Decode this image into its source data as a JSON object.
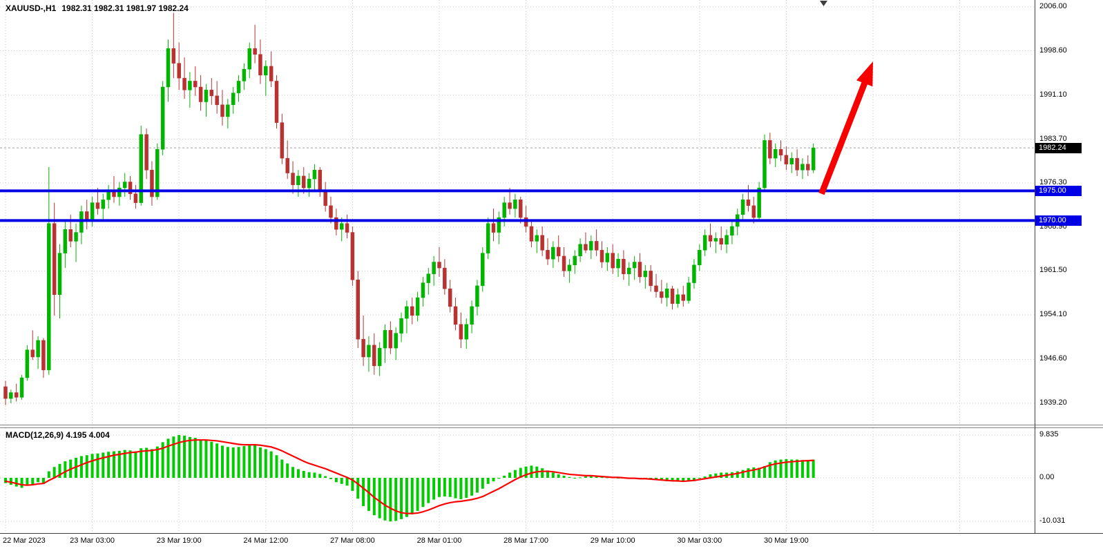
{
  "header": {
    "symbol_period": "XAUUSD-,H1",
    "ohlc": "1982.31 1982.31 1981.97 1982.24"
  },
  "badges": {
    "current": "1982.24",
    "resistance": "1975.00",
    "support": "1970.00"
  },
  "colors": {
    "bull": "#00B400",
    "bear": "#B83232",
    "macd_hist": "#00CC00",
    "macd_signal": "#FF0000",
    "hline": "#0000E6",
    "grid": "#C9C9C9",
    "current_price_line": "#9AA0A6",
    "arrow": "#F70000",
    "badge_current_bg": "#000000",
    "badge_line_bg": "#0000E6",
    "axis_text": "#000000"
  },
  "chart_data": {
    "type": "candlestick",
    "title": "XAUUSD-,H1",
    "symbol": "XAUUSD-",
    "timeframe": "H1",
    "last_bar": {
      "open": 1982.31,
      "high": 1982.31,
      "low": 1981.97,
      "close": 1982.24
    },
    "current_price": 1982.24,
    "y_axis": {
      "labels": [
        "2006.00",
        "1998.60",
        "1991.10",
        "1983.70",
        "1976.30",
        "1968.90",
        "1961.50",
        "1954.10",
        "1946.60",
        "1939.20"
      ],
      "values": [
        2006.0,
        1998.6,
        1991.1,
        1983.7,
        1976.3,
        1968.9,
        1961.5,
        1954.1,
        1946.6,
        1939.2
      ]
    },
    "x_axis": {
      "labels": [
        {
          "index": 0,
          "label": "22 Mar 2023"
        },
        {
          "index": 16,
          "label": "23 Mar 03:00"
        },
        {
          "index": 32,
          "label": "23 Mar 19:00"
        },
        {
          "index": 48,
          "label": "24 Mar 12:00"
        },
        {
          "index": 64,
          "label": "27 Mar 08:00"
        },
        {
          "index": 80,
          "label": "28 Mar 01:00"
        },
        {
          "index": 96,
          "label": "28 Mar 17:00"
        },
        {
          "index": 112,
          "label": "29 Mar 10:00"
        },
        {
          "index": 128,
          "label": "30 Mar 03:00"
        },
        {
          "index": 144,
          "label": "30 Mar 19:00"
        }
      ]
    },
    "grid_indices": [
      0,
      16,
      32,
      48,
      64,
      80,
      96,
      112,
      128,
      144,
      160,
      176
    ],
    "horizontal_lines": [
      {
        "price": 1975.0,
        "label": "1975.00",
        "color": "#0000E6"
      },
      {
        "price": 1970.0,
        "label": "1970.00",
        "color": "#0000E6"
      }
    ],
    "annotations": [
      {
        "type": "arrow",
        "from_index": 150.5,
        "from_price": 1974.5,
        "to_index": 160,
        "to_price": 1996.8,
        "color": "#F70000"
      }
    ],
    "candles": [
      [
        1942.0,
        1943.0,
        1938.9,
        1940.0
      ],
      [
        1940.0,
        1941.5,
        1939.2,
        1941.0
      ],
      [
        1941.0,
        1942.5,
        1939.5,
        1940.2
      ],
      [
        1940.2,
        1944.0,
        1939.8,
        1943.5
      ],
      [
        1943.5,
        1949.0,
        1943.0,
        1948.2
      ],
      [
        1948.2,
        1951.5,
        1946.5,
        1947.0
      ],
      [
        1947.0,
        1950.5,
        1945.0,
        1949.8
      ],
      [
        1949.8,
        1950.2,
        1943.5,
        1944.8
      ],
      [
        1944.8,
        1979.0,
        1944.0,
        1969.5
      ],
      [
        1969.5,
        1973.0,
        1954.0,
        1957.5
      ],
      [
        1957.5,
        1966.0,
        1953.5,
        1964.5
      ],
      [
        1964.5,
        1970.0,
        1962.0,
        1968.5
      ],
      [
        1968.5,
        1971.0,
        1965.5,
        1966.5
      ],
      [
        1966.5,
        1969.5,
        1963.0,
        1968.0
      ],
      [
        1968.0,
        1972.5,
        1966.0,
        1971.5
      ],
      [
        1971.5,
        1973.5,
        1968.5,
        1970.0
      ],
      [
        1970.0,
        1974.0,
        1969.0,
        1973.0
      ],
      [
        1973.0,
        1975.5,
        1971.0,
        1972.0
      ],
      [
        1972.0,
        1974.5,
        1970.0,
        1973.5
      ],
      [
        1973.5,
        1976.0,
        1972.0,
        1975.0
      ],
      [
        1975.0,
        1977.5,
        1973.0,
        1974.0
      ],
      [
        1974.0,
        1976.5,
        1972.5,
        1975.5
      ],
      [
        1975.5,
        1978.0,
        1974.0,
        1976.5
      ],
      [
        1976.5,
        1977.5,
        1973.5,
        1974.5
      ],
      [
        1974.5,
        1976.0,
        1972.0,
        1973.0
      ],
      [
        1973.0,
        1986.0,
        1972.5,
        1984.5
      ],
      [
        1984.5,
        1985.5,
        1977.0,
        1978.5
      ],
      [
        1978.5,
        1980.0,
        1972.5,
        1974.0
      ],
      [
        1974.0,
        1983.0,
        1973.5,
        1982.0
      ],
      [
        1982.0,
        1993.5,
        1981.0,
        1992.5
      ],
      [
        1992.5,
        2000.5,
        1990.0,
        1999.0
      ],
      [
        1999.0,
        2005.0,
        1994.0,
        1996.5
      ],
      [
        1996.5,
        2000.0,
        1992.0,
        1994.0
      ],
      [
        1994.0,
        1997.5,
        1990.5,
        1992.0
      ],
      [
        1992.0,
        1995.0,
        1989.0,
        1993.5
      ],
      [
        1993.5,
        1996.0,
        1991.0,
        1992.5
      ],
      [
        1992.5,
        1994.5,
        1988.5,
        1990.0
      ],
      [
        1990.0,
        1993.0,
        1987.5,
        1992.0
      ],
      [
        1992.0,
        1994.0,
        1989.5,
        1991.0
      ],
      [
        1991.0,
        1993.5,
        1988.0,
        1989.5
      ],
      [
        1989.5,
        1992.0,
        1986.0,
        1987.5
      ],
      [
        1987.5,
        1990.5,
        1985.5,
        1989.5
      ],
      [
        1989.5,
        1992.5,
        1988.0,
        1991.5
      ],
      [
        1991.5,
        1994.5,
        1990.0,
        1993.5
      ],
      [
        1993.5,
        1996.5,
        1992.0,
        1995.5
      ],
      [
        1995.5,
        2000.0,
        1994.0,
        1999.0
      ],
      [
        1999.0,
        2003.0,
        1996.5,
        1998.0
      ],
      [
        1998.0,
        2000.5,
        1993.0,
        1994.5
      ],
      [
        1994.5,
        1997.0,
        1991.0,
        1996.0
      ],
      [
        1996.0,
        1998.5,
        1992.5,
        1993.5
      ],
      [
        1993.5,
        1994.5,
        1985.5,
        1986.5
      ],
      [
        1986.5,
        1988.0,
        1979.5,
        1980.5
      ],
      [
        1980.5,
        1983.5,
        1977.0,
        1978.0
      ],
      [
        1978.0,
        1980.0,
        1974.5,
        1976.0
      ],
      [
        1976.0,
        1978.5,
        1974.0,
        1977.5
      ],
      [
        1977.5,
        1979.0,
        1974.5,
        1975.5
      ],
      [
        1975.5,
        1978.0,
        1974.0,
        1977.0
      ],
      [
        1977.0,
        1979.5,
        1975.0,
        1978.5
      ],
      [
        1978.5,
        1979.0,
        1974.0,
        1975.0
      ],
      [
        1975.0,
        1976.5,
        1971.5,
        1972.5
      ],
      [
        1972.5,
        1974.0,
        1969.5,
        1970.5
      ],
      [
        1970.5,
        1972.0,
        1967.5,
        1968.5
      ],
      [
        1968.5,
        1970.5,
        1966.5,
        1969.5
      ],
      [
        1969.5,
        1971.0,
        1967.0,
        1968.0
      ],
      [
        1968.0,
        1969.0,
        1959.0,
        1960.0
      ],
      [
        1960.0,
        1961.5,
        1948.5,
        1950.0
      ],
      [
        1950.0,
        1954.0,
        1945.5,
        1947.0
      ],
      [
        1947.0,
        1950.5,
        1944.5,
        1949.0
      ],
      [
        1949.0,
        1951.0,
        1944.0,
        1945.5
      ],
      [
        1945.5,
        1949.5,
        1943.8,
        1948.5
      ],
      [
        1948.5,
        1952.5,
        1946.0,
        1951.5
      ],
      [
        1951.5,
        1953.0,
        1947.5,
        1948.5
      ],
      [
        1948.5,
        1952.0,
        1946.5,
        1951.0
      ],
      [
        1951.0,
        1954.5,
        1949.5,
        1953.5
      ],
      [
        1953.5,
        1956.5,
        1951.0,
        1955.5
      ],
      [
        1955.5,
        1957.0,
        1952.5,
        1954.0
      ],
      [
        1954.0,
        1958.0,
        1953.0,
        1957.0
      ],
      [
        1957.0,
        1960.5,
        1955.5,
        1959.5
      ],
      [
        1959.5,
        1962.0,
        1957.5,
        1961.0
      ],
      [
        1961.0,
        1964.0,
        1959.0,
        1963.0
      ],
      [
        1963.0,
        1965.5,
        1960.5,
        1962.0
      ],
      [
        1962.0,
        1963.5,
        1957.5,
        1958.5
      ],
      [
        1958.5,
        1960.0,
        1954.5,
        1955.5
      ],
      [
        1955.5,
        1957.0,
        1951.5,
        1952.5
      ],
      [
        1952.5,
        1954.5,
        1948.5,
        1950.0
      ],
      [
        1950.0,
        1953.5,
        1948.4,
        1952.5
      ],
      [
        1952.5,
        1956.5,
        1951.0,
        1955.5
      ],
      [
        1955.5,
        1960.0,
        1954.0,
        1959.0
      ],
      [
        1959.0,
        1965.5,
        1958.0,
        1964.5
      ],
      [
        1964.5,
        1970.5,
        1963.5,
        1969.5
      ],
      [
        1969.5,
        1972.0,
        1966.5,
        1968.0
      ],
      [
        1968.0,
        1971.5,
        1966.0,
        1970.5
      ],
      [
        1970.5,
        1974.0,
        1969.0,
        1973.0
      ],
      [
        1973.0,
        1975.5,
        1971.0,
        1972.0
      ],
      [
        1972.0,
        1974.5,
        1970.5,
        1973.5
      ],
      [
        1973.5,
        1974.0,
        1969.5,
        1970.5
      ],
      [
        1970.5,
        1972.5,
        1968.0,
        1969.0
      ],
      [
        1969.0,
        1970.0,
        1965.5,
        1966.5
      ],
      [
        1966.5,
        1968.5,
        1964.5,
        1967.5
      ],
      [
        1967.5,
        1969.0,
        1964.0,
        1965.0
      ],
      [
        1965.0,
        1967.0,
        1962.5,
        1963.5
      ],
      [
        1963.5,
        1966.5,
        1962.0,
        1965.5
      ],
      [
        1965.5,
        1967.5,
        1963.0,
        1964.0
      ],
      [
        1964.0,
        1965.5,
        1960.5,
        1961.5
      ],
      [
        1961.5,
        1963.5,
        1959.5,
        1962.5
      ],
      [
        1962.5,
        1965.0,
        1961.0,
        1964.0
      ],
      [
        1964.0,
        1967.0,
        1963.0,
        1966.0
      ],
      [
        1966.0,
        1968.0,
        1964.5,
        1965.0
      ],
      [
        1965.0,
        1967.5,
        1963.5,
        1966.5
      ],
      [
        1966.5,
        1968.5,
        1964.0,
        1965.0
      ],
      [
        1965.0,
        1966.5,
        1962.0,
        1963.0
      ],
      [
        1963.0,
        1965.5,
        1961.5,
        1964.5
      ],
      [
        1964.5,
        1966.0,
        1961.0,
        1962.0
      ],
      [
        1962.0,
        1964.5,
        1960.5,
        1963.5
      ],
      [
        1963.5,
        1965.0,
        1960.0,
        1961.0
      ],
      [
        1961.0,
        1963.0,
        1959.0,
        1962.0
      ],
      [
        1962.0,
        1964.0,
        1960.0,
        1963.0
      ],
      [
        1963.0,
        1964.5,
        1959.5,
        1960.5
      ],
      [
        1960.5,
        1962.5,
        1958.5,
        1961.5
      ],
      [
        1961.5,
        1962.5,
        1958.0,
        1959.0
      ],
      [
        1959.0,
        1961.0,
        1957.0,
        1958.0
      ],
      [
        1958.0,
        1960.0,
        1956.0,
        1957.0
      ],
      [
        1957.0,
        1959.5,
        1955.5,
        1958.5
      ],
      [
        1958.5,
        1959.0,
        1955.0,
        1956.0
      ],
      [
        1956.0,
        1958.5,
        1955.3,
        1957.5
      ],
      [
        1957.5,
        1959.0,
        1955.5,
        1956.5
      ],
      [
        1956.5,
        1960.5,
        1956.0,
        1959.5
      ],
      [
        1959.5,
        1963.5,
        1958.5,
        1962.5
      ],
      [
        1962.5,
        1966.0,
        1961.5,
        1965.0
      ],
      [
        1965.0,
        1968.5,
        1964.0,
        1967.5
      ],
      [
        1967.5,
        1969.5,
        1965.5,
        1966.5
      ],
      [
        1966.5,
        1968.0,
        1964.5,
        1967.0
      ],
      [
        1967.0,
        1969.0,
        1965.0,
        1966.0
      ],
      [
        1966.0,
        1968.5,
        1964.5,
        1967.5
      ],
      [
        1967.5,
        1970.0,
        1966.0,
        1969.0
      ],
      [
        1969.0,
        1972.0,
        1967.5,
        1971.0
      ],
      [
        1971.0,
        1974.5,
        1970.0,
        1973.5
      ],
      [
        1973.5,
        1976.0,
        1971.5,
        1972.5
      ],
      [
        1972.5,
        1974.0,
        1969.5,
        1970.5
      ],
      [
        1970.5,
        1976.5,
        1970.0,
        1975.5
      ],
      [
        1975.5,
        1984.5,
        1975.0,
        1983.5
      ],
      [
        1983.5,
        1984.8,
        1979.5,
        1980.5
      ],
      [
        1980.5,
        1983.0,
        1979.0,
        1982.0
      ],
      [
        1982.0,
        1983.5,
        1980.0,
        1981.0
      ],
      [
        1981.0,
        1982.5,
        1978.5,
        1979.5
      ],
      [
        1979.5,
        1981.5,
        1978.0,
        1980.5
      ],
      [
        1980.5,
        1982.0,
        1977.5,
        1978.5
      ],
      [
        1978.5,
        1980.5,
        1977.0,
        1979.5
      ],
      [
        1979.5,
        1981.0,
        1977.5,
        1978.5
      ],
      [
        1978.5,
        1983.0,
        1978.0,
        1982.24
      ]
    ],
    "macd": {
      "label": "MACD(12,26,9) 4.195 4.004",
      "params": "12,26,9",
      "macd_value": 4.195,
      "signal_value": 4.004,
      "scale_labels": [
        "9.835",
        "0.00",
        "-10.031"
      ],
      "scale_values": [
        9.835,
        0,
        -10.031
      ],
      "histogram": [
        -1.2,
        -1.6,
        -2.0,
        -2.3,
        -1.8,
        -1.5,
        -1.0,
        -1.4,
        1.5,
        2.5,
        3.2,
        3.8,
        4.2,
        4.6,
        5.0,
        5.2,
        5.5,
        5.6,
        5.8,
        6.0,
        6.1,
        6.2,
        6.4,
        6.3,
        6.1,
        6.8,
        6.9,
        6.6,
        7.2,
        8.2,
        9.0,
        9.5,
        9.835,
        9.7,
        9.4,
        9.2,
        8.8,
        8.6,
        8.3,
        7.9,
        7.4,
        7.1,
        7.0,
        7.1,
        7.3,
        7.6,
        7.5,
        7.0,
        6.6,
        6.1,
        5.2,
        4.2,
        3.3,
        2.5,
        2.0,
        1.6,
        1.3,
        1.2,
        0.9,
        0.4,
        -0.3,
        -1.0,
        -1.4,
        -1.8,
        -3.0,
        -4.8,
        -6.5,
        -7.6,
        -8.6,
        -9.3,
        -9.8,
        -10.031,
        -9.9,
        -9.5,
        -9.0,
        -8.4,
        -7.6,
        -6.7,
        -5.8,
        -5.0,
        -4.4,
        -4.3,
        -4.4,
        -4.7,
        -4.9,
        -4.6,
        -4.1,
        -3.4,
        -2.5,
        -1.4,
        -0.8,
        -0.2,
        0.5,
        1.2,
        1.8,
        2.3,
        2.6,
        2.8,
        2.6,
        2.2,
        1.7,
        1.2,
        0.8,
        0.5,
        0.2,
        0.0,
        0.1,
        0.3,
        0.3,
        0.4,
        0.3,
        0.1,
        0.1,
        -0.1,
        0.0,
        -0.2,
        -0.2,
        -0.1,
        -0.3,
        -0.2,
        -0.4,
        -0.6,
        -0.8,
        -0.7,
        -0.9,
        -0.8,
        -0.8,
        -0.5,
        -0.1,
        0.3,
        0.8,
        1.0,
        1.2,
        1.2,
        1.3,
        1.5,
        1.8,
        2.2,
        2.4,
        2.3,
        2.7,
        3.6,
        4.0,
        4.2,
        4.3,
        4.2,
        4.2,
        4.1,
        4.1,
        4.195
      ],
      "signal": [
        -0.8,
        -1.0,
        -1.3,
        -1.6,
        -1.7,
        -1.6,
        -1.4,
        -1.3,
        -0.6,
        0.0,
        0.7,
        1.4,
        2.0,
        2.5,
        3.0,
        3.5,
        3.9,
        4.3,
        4.6,
        4.9,
        5.2,
        5.4,
        5.6,
        5.8,
        5.9,
        6.1,
        6.2,
        6.3,
        6.5,
        6.8,
        7.3,
        7.7,
        8.1,
        8.4,
        8.6,
        8.7,
        8.7,
        8.7,
        8.6,
        8.5,
        8.3,
        8.1,
        7.9,
        7.7,
        7.6,
        7.6,
        7.6,
        7.5,
        7.3,
        7.1,
        6.7,
        6.2,
        5.6,
        5.0,
        4.4,
        3.8,
        3.3,
        2.9,
        2.5,
        2.1,
        1.6,
        1.1,
        0.6,
        0.1,
        -0.5,
        -1.4,
        -2.4,
        -3.4,
        -4.5,
        -5.4,
        -6.3,
        -7.0,
        -7.6,
        -8.0,
        -8.2,
        -8.2,
        -8.1,
        -7.8,
        -7.4,
        -6.9,
        -6.4,
        -6.0,
        -5.7,
        -5.5,
        -5.4,
        -5.2,
        -5.0,
        -4.7,
        -4.3,
        -3.7,
        -3.1,
        -2.5,
        -1.8,
        -1.1,
        -0.4,
        0.2,
        0.7,
        1.1,
        1.4,
        1.5,
        1.5,
        1.4,
        1.2,
        1.0,
        0.8,
        0.7,
        0.6,
        0.5,
        0.5,
        0.4,
        0.3,
        0.2,
        0.1,
        0.1,
        0.0,
        -0.1,
        -0.1,
        -0.2,
        -0.2,
        -0.3,
        -0.4,
        -0.5,
        -0.6,
        -0.7,
        -0.7,
        -0.8,
        -0.7,
        -0.6,
        -0.4,
        -0.2,
        0.0,
        0.2,
        0.4,
        0.6,
        0.8,
        1.0,
        1.3,
        1.6,
        1.8,
        2.1,
        2.5,
        2.9,
        3.2,
        3.4,
        3.6,
        3.7,
        3.8,
        3.9,
        3.95,
        4.004
      ]
    }
  }
}
